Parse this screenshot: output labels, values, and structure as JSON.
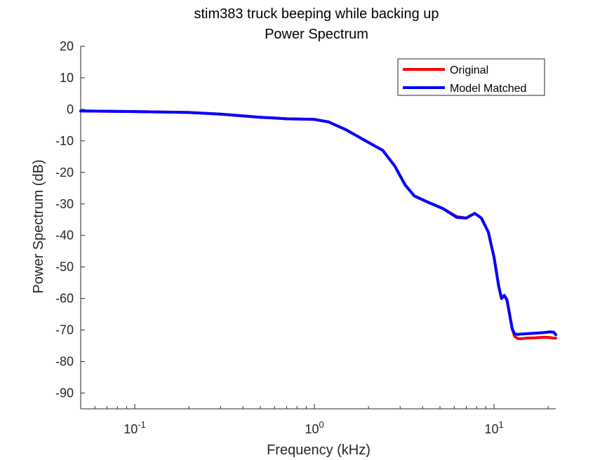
{
  "chart_data": {
    "type": "line",
    "title": "stim383 truck beeping while backing up",
    "subtitle": "Power Spectrum",
    "xlabel": "Frequency (kHz)",
    "ylabel": "Power Spectrum (dB)",
    "xscale": "log",
    "xlim": [
      0.05,
      22.05
    ],
    "ylim": [
      -95,
      20
    ],
    "xticks": [
      {
        "value": 0.1,
        "base": "10",
        "exp": "-1"
      },
      {
        "value": 1,
        "base": "10",
        "exp": "0"
      },
      {
        "value": 10,
        "base": "10",
        "exp": "1"
      }
    ],
    "yticks": [
      20,
      10,
      0,
      -10,
      -20,
      -30,
      -40,
      -50,
      -60,
      -70,
      -80,
      -90
    ],
    "grid": false,
    "legend_position": "top-right",
    "series": [
      {
        "name": "Original",
        "color": "#ff0000",
        "x": [
          0.05,
          0.1,
          0.2,
          0.3,
          0.5,
          0.7,
          1.0,
          1.2,
          1.5,
          2.0,
          2.4,
          2.8,
          3.2,
          3.6,
          4.3,
          5.2,
          6.2,
          7.0,
          7.8,
          8.5,
          9.3,
          10.0,
          10.6,
          11.0,
          11.4,
          11.8,
          12.2,
          12.6,
          13.0,
          13.5,
          14.0,
          15.0,
          17.0,
          19.0,
          20.5,
          21.5,
          22.05
        ],
        "y": [
          -0.5,
          -0.7,
          -1.0,
          -1.5,
          -2.5,
          -3.0,
          -3.2,
          -4.0,
          -6.5,
          -10.5,
          -13.0,
          -18.0,
          -24.0,
          -27.5,
          -29.5,
          -31.5,
          -34.0,
          -34.5,
          -33.0,
          -34.5,
          -39.0,
          -47.0,
          -56.0,
          -60.0,
          -59.0,
          -60.5,
          -65.0,
          -69.5,
          -72.0,
          -72.7,
          -72.8,
          -72.6,
          -72.5,
          -72.3,
          -72.4,
          -72.6,
          -72.6
        ]
      },
      {
        "name": "Model Matched",
        "color": "#0000ff",
        "x": [
          0.05,
          0.1,
          0.2,
          0.3,
          0.5,
          0.7,
          1.0,
          1.2,
          1.5,
          2.0,
          2.4,
          2.8,
          3.2,
          3.6,
          4.3,
          5.2,
          6.2,
          7.0,
          7.8,
          8.5,
          9.3,
          10.0,
          10.6,
          11.0,
          11.4,
          11.8,
          12.2,
          12.6,
          13.0,
          13.5,
          14.0,
          15.0,
          17.0,
          19.0,
          20.5,
          21.5,
          22.05
        ],
        "y": [
          -0.5,
          -0.7,
          -1.0,
          -1.5,
          -2.5,
          -3.0,
          -3.2,
          -4.0,
          -6.5,
          -10.5,
          -13.0,
          -18.0,
          -24.0,
          -27.5,
          -29.5,
          -31.5,
          -34.3,
          -34.5,
          -33.0,
          -34.5,
          -39.0,
          -47.0,
          -56.0,
          -60.0,
          -59.0,
          -60.5,
          -65.0,
          -69.5,
          -71.2,
          -71.4,
          -71.3,
          -71.2,
          -71.0,
          -70.8,
          -70.6,
          -70.7,
          -71.5
        ]
      }
    ]
  }
}
